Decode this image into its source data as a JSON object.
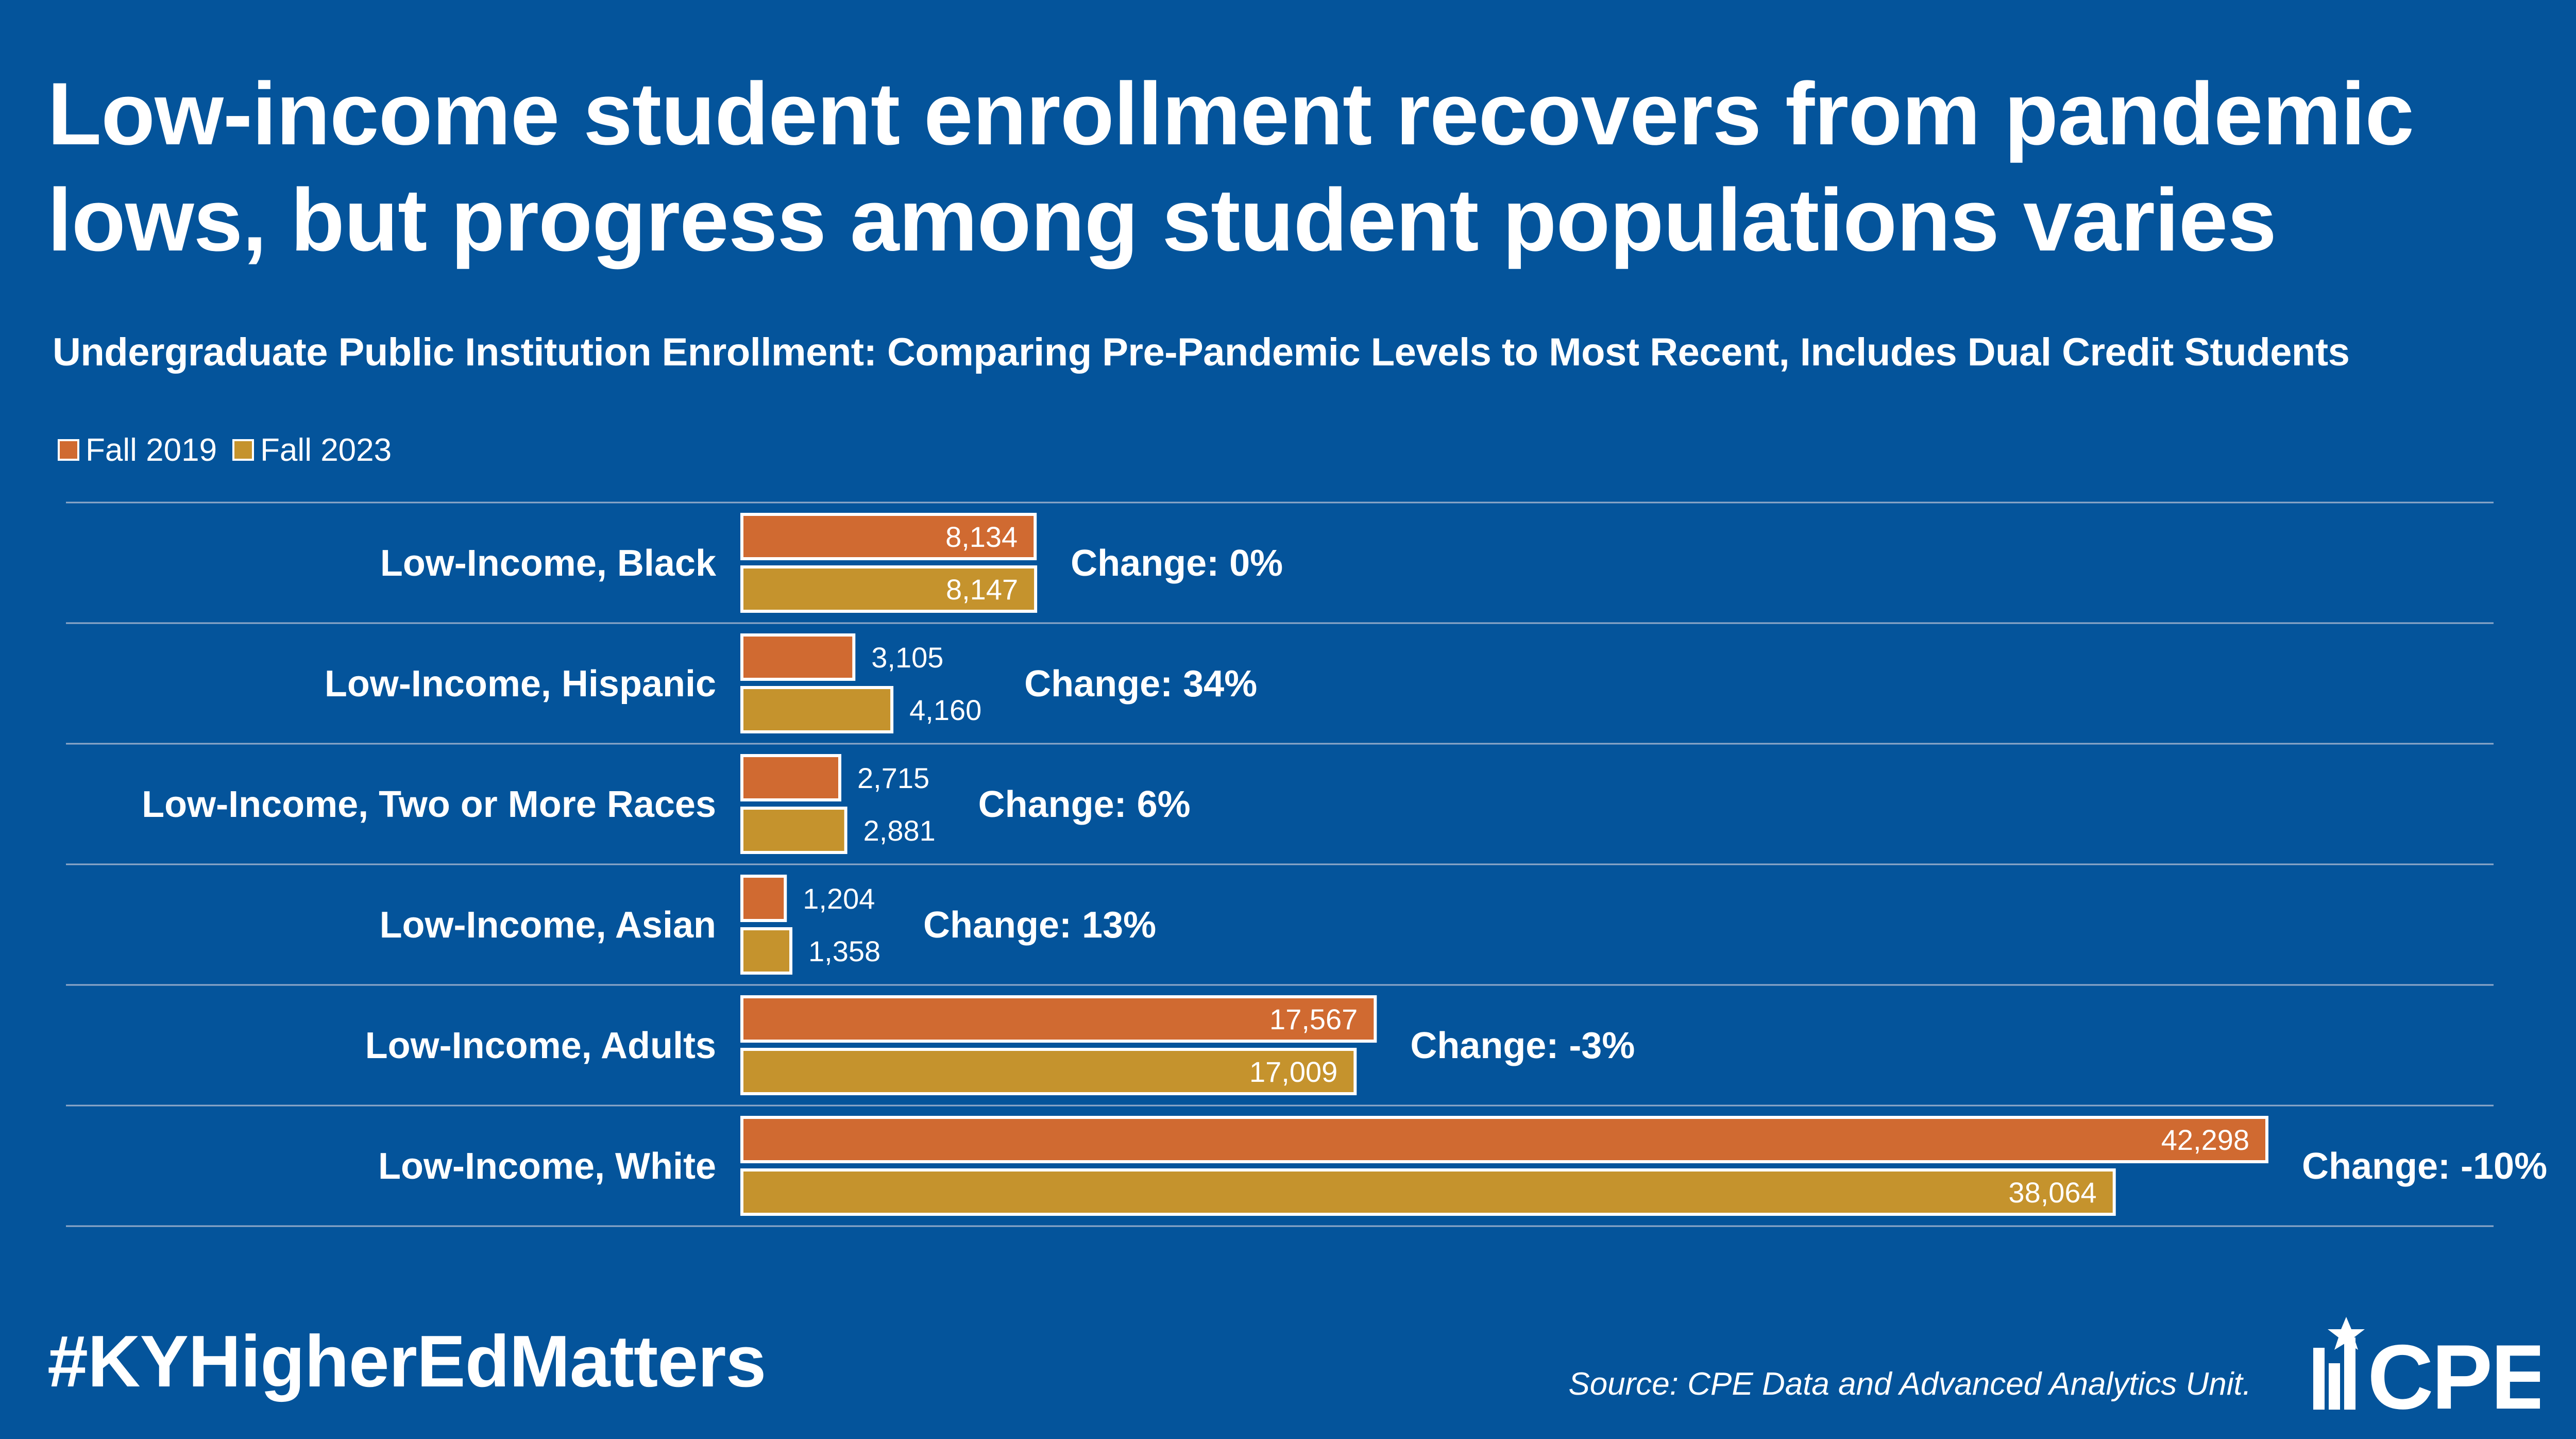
{
  "header": {
    "title": "Low-income student enrollment recovers from pandemic lows, but progress among student populations varies"
  },
  "footer": {
    "hashtag": "#KYHigherEdMatters",
    "source": "Source: CPE Data and Advanced Analytics Unit.",
    "logo_text": "CPE"
  },
  "colors": {
    "background": "#04549b",
    "fall_2019": "#d06a31",
    "fall_2023": "#c5932d",
    "bar_border": "#ffffff",
    "gridline": "#8fa9c9"
  },
  "chart_data": {
    "type": "bar",
    "orientation": "horizontal",
    "title": "Undergraduate Public Institution Enrollment: Comparing Pre-Pandemic Levels to Most Recent, Includes Dual Credit Students",
    "categories": [
      "Low-Income, Black",
      "Low-Income, Hispanic",
      "Low-Income, Two or More Races",
      "Low-Income, Asian",
      "Low-Income, Adults",
      "Low-Income, White"
    ],
    "series": [
      {
        "name": "Fall 2019",
        "values": [
          8134,
          3105,
          2715,
          1204,
          17567,
          42298
        ],
        "labels": [
          "8,134",
          "3,105",
          "2,715",
          "1,204",
          "17,567",
          "42,298"
        ]
      },
      {
        "name": "Fall 2023",
        "values": [
          8147,
          4160,
          2881,
          1358,
          17009,
          38064
        ],
        "labels": [
          "8,147",
          "4,160",
          "2,881",
          "1,358",
          "17,009",
          "38,064"
        ]
      }
    ],
    "change_labels": [
      "Change: 0%",
      "Change: 34%",
      "Change: 6%",
      "Change: 13%",
      "Change: -3%",
      "Change: -10%"
    ],
    "xlim": [
      0,
      42298
    ],
    "legend": "top-left",
    "grid": "horizontal separators between categories"
  }
}
